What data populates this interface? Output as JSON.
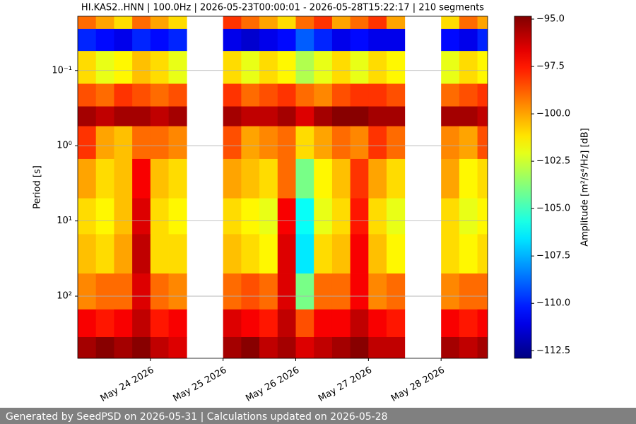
{
  "chart_data": {
    "type": "heatmap",
    "title": "HI.KAS2..HNN | 100.0Hz | 2026-05-23T00:00:01 - 2026-05-28T15:22:17 | 210 segments",
    "y_label": "Period [s]",
    "colorbar_label": "Amplitude [m²/s⁴/Hz] [dB]",
    "colormap": "jet",
    "x_edges": [
      23.0,
      23.25,
      23.5,
      23.75,
      24.0,
      24.25,
      24.5,
      24.75,
      25.0,
      25.25,
      25.5,
      25.75,
      26.0,
      26.25,
      26.5,
      26.75,
      27.0,
      27.25,
      27.5,
      27.75,
      28.0,
      28.25,
      28.5,
      28.64
    ],
    "y_edges": [
      0.019,
      0.028,
      0.055,
      0.15,
      0.3,
      0.55,
      1.5,
      5,
      15,
      50,
      150,
      350,
      670
    ],
    "values": [
      [
        -99,
        -100,
        -101,
        -99,
        -100,
        -101,
        null,
        null,
        -98,
        -99,
        -100,
        -101,
        -99,
        -98,
        -100,
        -99,
        -98,
        -100,
        null,
        null,
        -101,
        -99,
        -100
      ],
      [
        -110,
        -110.5,
        -111,
        -110,
        -110.5,
        -110,
        null,
        null,
        -111,
        -111.5,
        -111,
        -110.5,
        -109,
        -110,
        -111,
        -110.5,
        -111,
        -111,
        null,
        null,
        -110.5,
        -111,
        -110
      ],
      [
        -101,
        -102,
        -101.5,
        -100.5,
        -101,
        -102,
        null,
        null,
        -101,
        -102,
        -101,
        -101.5,
        -103,
        -102,
        -101,
        -102,
        -101,
        -101.5,
        null,
        null,
        -102,
        -101,
        -101.5
      ],
      [
        -98.5,
        -99,
        -98,
        -98.5,
        -99,
        -98.5,
        null,
        null,
        -98,
        -99,
        -98.5,
        -98,
        -99,
        -99.5,
        -98.5,
        -98,
        -98,
        -98.5,
        null,
        null,
        -99,
        -98.5,
        -98
      ],
      [
        -95.5,
        -96,
        -95.5,
        -95.5,
        -96,
        -95.5,
        null,
        null,
        -95.5,
        -96,
        -96,
        -95.5,
        -96.5,
        -95.5,
        -95,
        -95,
        -95.5,
        -95.5,
        null,
        null,
        -95.5,
        -95.5,
        -96
      ],
      [
        -98,
        -100,
        -100.5,
        -99,
        -99,
        -99.5,
        null,
        null,
        -98.5,
        -100,
        -99.5,
        -99,
        -101,
        -100,
        -99,
        -99.5,
        -98,
        -99,
        null,
        null,
        -99.5,
        -100,
        -98.5
      ],
      [
        -100,
        -101,
        -100.5,
        -97,
        -100.5,
        -101,
        null,
        null,
        -100,
        -100.5,
        -101,
        -99,
        -104,
        -101.5,
        -100.5,
        -98,
        -100,
        -101,
        null,
        null,
        -100,
        -101.5,
        -101
      ],
      [
        -101,
        -101.5,
        -100.5,
        -96.5,
        -101,
        -101.5,
        null,
        null,
        -101,
        -101.5,
        -102,
        -97,
        -106,
        -102,
        -101,
        -97.5,
        -101,
        -102,
        null,
        null,
        -101,
        -102,
        -101.5
      ],
      [
        -100.5,
        -101,
        -100,
        -96,
        -101,
        -101,
        null,
        null,
        -100.5,
        -101,
        -101.5,
        -96.5,
        -106.5,
        -101,
        -100.5,
        -97,
        -100.5,
        -101.5,
        null,
        null,
        -101,
        -101.5,
        -101
      ],
      [
        -99.5,
        -99,
        -99,
        -96.5,
        -99,
        -99.5,
        null,
        null,
        -99,
        -98.5,
        -99,
        -96.5,
        -104,
        -99,
        -99,
        -97,
        -99.5,
        -99,
        null,
        null,
        -99.5,
        -99,
        -99
      ],
      [
        -97,
        -97.5,
        -97,
        -96,
        -97.5,
        -97,
        null,
        null,
        -96.5,
        -97,
        -97.5,
        -96,
        -98.5,
        -97,
        -97,
        -96,
        -97,
        -97.5,
        null,
        null,
        -97,
        -97.5,
        -97
      ],
      [
        -95.5,
        -95,
        -95.5,
        -95,
        -96,
        -96.5,
        null,
        null,
        -95.5,
        -95,
        -96,
        -95.5,
        -96.5,
        -96,
        -95.5,
        -95,
        -96,
        -96,
        null,
        null,
        -95.5,
        -96,
        -95.5
      ]
    ],
    "xlim": [
      23.0,
      28.64
    ],
    "xticks": [
      {
        "value": 24,
        "label": "May 24 2026"
      },
      {
        "value": 25,
        "label": "May 25 2026"
      },
      {
        "value": 26,
        "label": "May 26 2026"
      },
      {
        "value": 27,
        "label": "May 27 2026"
      },
      {
        "value": 28,
        "label": "May 28 2026"
      }
    ],
    "ylim": [
      0.019,
      670
    ],
    "ylog": true,
    "yinvert": true,
    "yticks": [
      {
        "value": 0.1,
        "label": "10⁻¹"
      },
      {
        "value": 1,
        "label": "10⁰"
      },
      {
        "value": 10,
        "label": "10¹"
      },
      {
        "value": 100,
        "label": "10²"
      }
    ],
    "grid": true,
    "clim": [
      -112.9,
      -94.85
    ],
    "cticks": [
      {
        "value": -95,
        "label": "−95.0"
      },
      {
        "value": -97.5,
        "label": "−97.5"
      },
      {
        "value": -100,
        "label": "−100.0"
      },
      {
        "value": -102.5,
        "label": "−102.5"
      },
      {
        "value": -105,
        "label": "−105.0"
      },
      {
        "value": -107.5,
        "label": "−107.5"
      },
      {
        "value": -110,
        "label": "−110.0"
      },
      {
        "value": -112.5,
        "label": "−112.5"
      }
    ]
  },
  "footer": "Generated by SeedPSD on 2026-05-31 | Calculations updated on 2026-05-28"
}
